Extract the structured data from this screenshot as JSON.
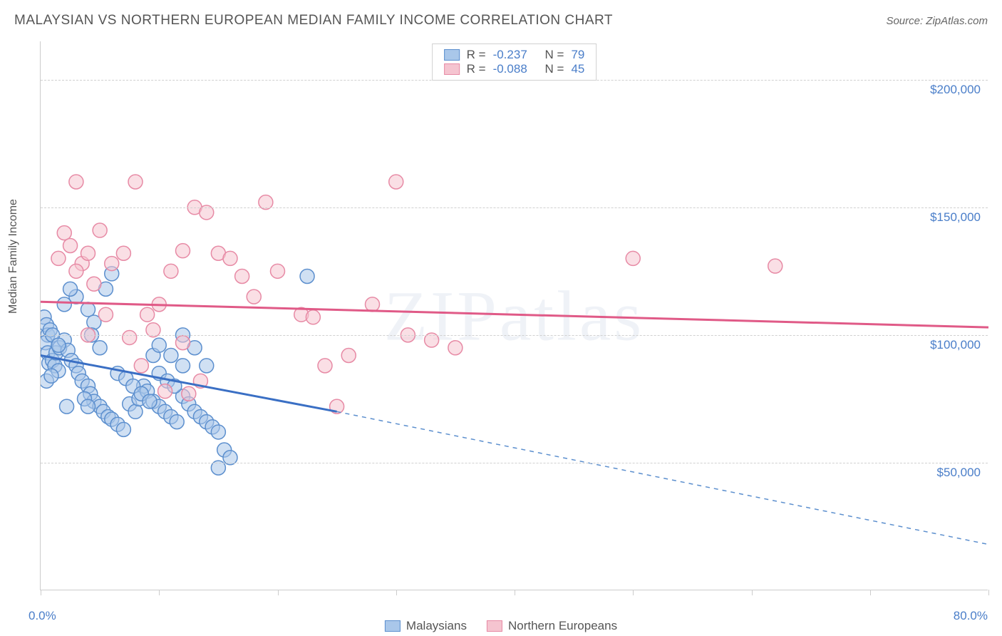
{
  "title": "MALAYSIAN VS NORTHERN EUROPEAN MEDIAN FAMILY INCOME CORRELATION CHART",
  "source_label": "Source: ZipAtlas.com",
  "watermark": "ZIPatlas",
  "chart": {
    "type": "scatter",
    "ylabel": "Median Family Income",
    "xlim": [
      0,
      80
    ],
    "ylim": [
      0,
      215000
    ],
    "xtick_labels": {
      "start": "0.0%",
      "end": "80.0%"
    },
    "xtick_positions_pct": [
      0,
      12.5,
      25,
      37.5,
      50,
      62.5,
      75,
      87.5,
      100
    ],
    "yticks": [
      {
        "value": 50000,
        "label": "$50,000"
      },
      {
        "value": 100000,
        "label": "$100,000"
      },
      {
        "value": 150000,
        "label": "$150,000"
      },
      {
        "value": 200000,
        "label": "$200,000"
      }
    ],
    "grid_color": "#d0d0d0",
    "background_color": "#ffffff",
    "marker_radius": 10,
    "marker_opacity": 0.55,
    "series": [
      {
        "name": "Malaysians",
        "fill": "#a9c7ea",
        "stroke": "#5c8fce",
        "line_color": "#3a6fc4",
        "trend": {
          "x1": 0,
          "y1": 92000,
          "x2": 25,
          "y2": 70000,
          "dash_x2": 80,
          "dash_y2": 18000
        },
        "R": "-0.237",
        "N": "79",
        "points": [
          [
            0.3,
            107000
          ],
          [
            0.5,
            104000
          ],
          [
            0.6,
            100000
          ],
          [
            0.8,
            102000
          ],
          [
            0.4,
            97000
          ],
          [
            0.6,
            93000
          ],
          [
            0.7,
            89000
          ],
          [
            1.0,
            90000
          ],
          [
            1.2,
            88000
          ],
          [
            1.5,
            86000
          ],
          [
            0.5,
            82000
          ],
          [
            0.9,
            84000
          ],
          [
            1.3,
            93000
          ],
          [
            1.6,
            95000
          ],
          [
            2.0,
            98000
          ],
          [
            2.3,
            94000
          ],
          [
            2.6,
            90000
          ],
          [
            3.0,
            88000
          ],
          [
            3.2,
            85000
          ],
          [
            3.5,
            82000
          ],
          [
            4.0,
            80000
          ],
          [
            4.2,
            77000
          ],
          [
            4.5,
            74000
          ],
          [
            5.0,
            72000
          ],
          [
            5.3,
            70000
          ],
          [
            5.7,
            68000
          ],
          [
            6.0,
            67000
          ],
          [
            6.5,
            65000
          ],
          [
            7.0,
            63000
          ],
          [
            7.5,
            73000
          ],
          [
            8.0,
            70000
          ],
          [
            8.3,
            75000
          ],
          [
            8.7,
            80000
          ],
          [
            9.0,
            78000
          ],
          [
            9.5,
            74000
          ],
          [
            10.0,
            72000
          ],
          [
            10.5,
            70000
          ],
          [
            11.0,
            68000
          ],
          [
            11.5,
            66000
          ],
          [
            12.0,
            76000
          ],
          [
            12.5,
            73000
          ],
          [
            13.0,
            70000
          ],
          [
            13.5,
            68000
          ],
          [
            14.0,
            66000
          ],
          [
            14.5,
            64000
          ],
          [
            15.0,
            62000
          ],
          [
            15.5,
            55000
          ],
          [
            5.5,
            118000
          ],
          [
            6.0,
            124000
          ],
          [
            3.0,
            115000
          ],
          [
            4.0,
            110000
          ],
          [
            4.5,
            105000
          ],
          [
            2.0,
            112000
          ],
          [
            2.5,
            118000
          ],
          [
            1.0,
            100000
          ],
          [
            1.5,
            96000
          ],
          [
            22.5,
            123000
          ],
          [
            6.5,
            85000
          ],
          [
            7.2,
            83000
          ],
          [
            7.8,
            80000
          ],
          [
            8.5,
            77000
          ],
          [
            9.2,
            74000
          ],
          [
            10.0,
            85000
          ],
          [
            10.7,
            82000
          ],
          [
            11.3,
            80000
          ],
          [
            12.0,
            88000
          ],
          [
            9.5,
            92000
          ],
          [
            10.0,
            96000
          ],
          [
            11.0,
            92000
          ],
          [
            12.0,
            100000
          ],
          [
            13.0,
            95000
          ],
          [
            5.0,
            95000
          ],
          [
            4.3,
            100000
          ],
          [
            14.0,
            88000
          ],
          [
            15.0,
            48000
          ],
          [
            16.0,
            52000
          ],
          [
            3.7,
            75000
          ],
          [
            4.0,
            72000
          ],
          [
            2.2,
            72000
          ]
        ]
      },
      {
        "name": "Northern Europeans",
        "fill": "#f5c4d0",
        "stroke": "#e78aa5",
        "line_color": "#e05a87",
        "trend": {
          "x1": 0,
          "y1": 113000,
          "x2": 80,
          "y2": 103000
        },
        "R": "-0.088",
        "N": "45",
        "points": [
          [
            1.5,
            130000
          ],
          [
            2.0,
            140000
          ],
          [
            2.5,
            135000
          ],
          [
            3.0,
            160000
          ],
          [
            3.5,
            128000
          ],
          [
            4.0,
            132000
          ],
          [
            5.0,
            141000
          ],
          [
            8.0,
            160000
          ],
          [
            6.0,
            128000
          ],
          [
            7.0,
            132000
          ],
          [
            9.0,
            108000
          ],
          [
            10.0,
            112000
          ],
          [
            11.0,
            125000
          ],
          [
            12.0,
            133000
          ],
          [
            13.0,
            150000
          ],
          [
            14.0,
            148000
          ],
          [
            15.0,
            132000
          ],
          [
            16.0,
            130000
          ],
          [
            17.0,
            123000
          ],
          [
            18.0,
            115000
          ],
          [
            19.0,
            152000
          ],
          [
            20.0,
            125000
          ],
          [
            22.0,
            108000
          ],
          [
            24.0,
            88000
          ],
          [
            26.0,
            92000
          ],
          [
            28.0,
            112000
          ],
          [
            30.0,
            160000
          ],
          [
            31.0,
            100000
          ],
          [
            33.0,
            98000
          ],
          [
            35.0,
            95000
          ],
          [
            3.0,
            125000
          ],
          [
            4.5,
            120000
          ],
          [
            5.5,
            108000
          ],
          [
            7.5,
            99000
          ],
          [
            8.5,
            88000
          ],
          [
            9.5,
            102000
          ],
          [
            10.5,
            78000
          ],
          [
            25.0,
            72000
          ],
          [
            23.0,
            107000
          ],
          [
            13.5,
            82000
          ],
          [
            12.5,
            77000
          ],
          [
            50.0,
            130000
          ],
          [
            62.0,
            127000
          ],
          [
            4.0,
            100000
          ],
          [
            12.0,
            97000
          ]
        ]
      }
    ]
  },
  "legend": {
    "stats_label_R": "R =",
    "stats_label_N": "N ="
  }
}
